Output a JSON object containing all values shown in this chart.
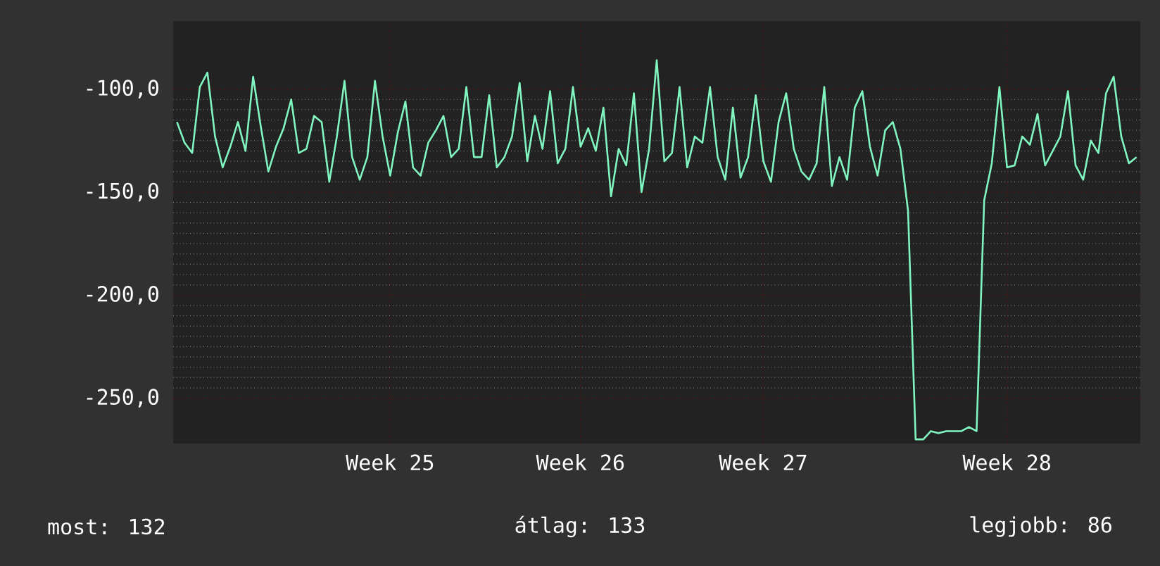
{
  "chart_data": {
    "type": "line",
    "color": "#80f5c0",
    "grid": true,
    "ylim": [
      -272,
      -67
    ],
    "yticks": [
      {
        "value": -250,
        "label": "-250,0"
      },
      {
        "value": -200,
        "label": "-200,0"
      },
      {
        "value": -150,
        "label": "-150,0"
      },
      {
        "value": -100,
        "label": "-100,0"
      }
    ],
    "categories": [
      null,
      null,
      null,
      null,
      null,
      null,
      null,
      null,
      null,
      null,
      null,
      null,
      null,
      null,
      null,
      null,
      null,
      null,
      null,
      null,
      null,
      null,
      null,
      null,
      null,
      null,
      null,
      null,
      "Week 25",
      null,
      null,
      null,
      null,
      null,
      null,
      null,
      null,
      null,
      null,
      null,
      null,
      null,
      null,
      null,
      null,
      null,
      null,
      null,
      null,
      null,
      null,
      null,
      null,
      "Week 26",
      null,
      null,
      null,
      null,
      null,
      null,
      null,
      null,
      null,
      null,
      null,
      null,
      null,
      null,
      null,
      null,
      null,
      null,
      null,
      null,
      null,
      null,
      null,
      "Week 27",
      null,
      null,
      null,
      null,
      null,
      null,
      null,
      null,
      null,
      null,
      null,
      null,
      null,
      null,
      null,
      null,
      null,
      null,
      null,
      null,
      null,
      null,
      null,
      null,
      null,
      null,
      null,
      null,
      null,
      null,
      null,
      "Week 28",
      null,
      null,
      null,
      null,
      null,
      null,
      null,
      null,
      null,
      null,
      null,
      null,
      null,
      null,
      null,
      null,
      null
    ],
    "values": [
      -116,
      -126,
      -131,
      -99,
      -92,
      -123,
      -138,
      -128,
      -116,
      -130,
      -94,
      -118,
      -140,
      -128,
      -119,
      -105,
      -131,
      -129,
      -113,
      -116,
      -145,
      -123,
      -96,
      -133,
      -144,
      -133,
      -96,
      -123,
      -142,
      -121,
      -106,
      -138,
      -142,
      -126,
      -120,
      -113,
      -133,
      -129,
      -99,
      -133,
      -133,
      -103,
      -138,
      -133,
      -123,
      -97,
      -135,
      -113,
      -129,
      -101,
      -136,
      -129,
      -99,
      -128,
      -119,
      -130,
      -109,
      -152,
      -129,
      -137,
      -102,
      -150,
      -129,
      -86,
      -135,
      -131,
      -99,
      -138,
      -123,
      -126,
      -99,
      -133,
      -144,
      -109,
      -143,
      -133,
      -103,
      -135,
      -145,
      -116,
      -102,
      -129,
      -140,
      -144,
      -136,
      -99,
      -147,
      -133,
      -144,
      -109,
      -101,
      -128,
      -142,
      -120,
      -116,
      -129,
      -159,
      -270,
      -270,
      -266,
      -267,
      -266,
      -266,
      -266,
      -264,
      -266,
      -154,
      -136,
      -99,
      -138,
      -137,
      -123,
      -127,
      -112,
      -137,
      -130,
      -123,
      -101,
      -137,
      -144,
      -125,
      -131,
      -102,
      -94,
      -123,
      -136,
      -133
    ],
    "annotations": [
      "most: 132",
      "átlag: 133",
      "legjobb: 86"
    ]
  }
}
